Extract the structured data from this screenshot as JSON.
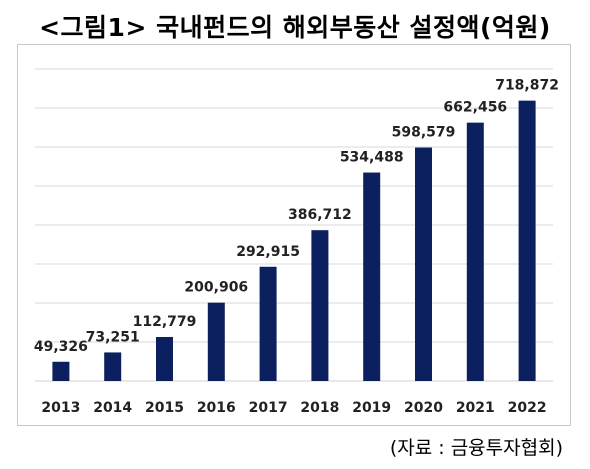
{
  "title": "<그림1> 국내펀드의 해외부동산 설정액(억원)",
  "source": "(자료 : 금융투자협회)",
  "colors": {
    "bar": "#0c1f5e",
    "grid": "#d9d9d9",
    "frame": "#c8c8c8"
  },
  "chart_data": {
    "type": "bar",
    "title": "<그림1> 국내펀드의 해외부동산 설정액(억원)",
    "categories": [
      "2013",
      "2014",
      "2015",
      "2016",
      "2017",
      "2018",
      "2019",
      "2020",
      "2021",
      "2022"
    ],
    "values": [
      49326,
      73251,
      112779,
      200906,
      292915,
      386712,
      534488,
      598579,
      662456,
      718872
    ],
    "value_labels": [
      "49,326",
      "73,251",
      "112,779",
      "200,906",
      "292,915",
      "386,712",
      "534,488",
      "598,579",
      "662,456",
      "718,872"
    ],
    "xlabel": "",
    "ylabel": "",
    "ylim": [
      0,
      800000
    ],
    "grid": true,
    "legend": "none"
  }
}
